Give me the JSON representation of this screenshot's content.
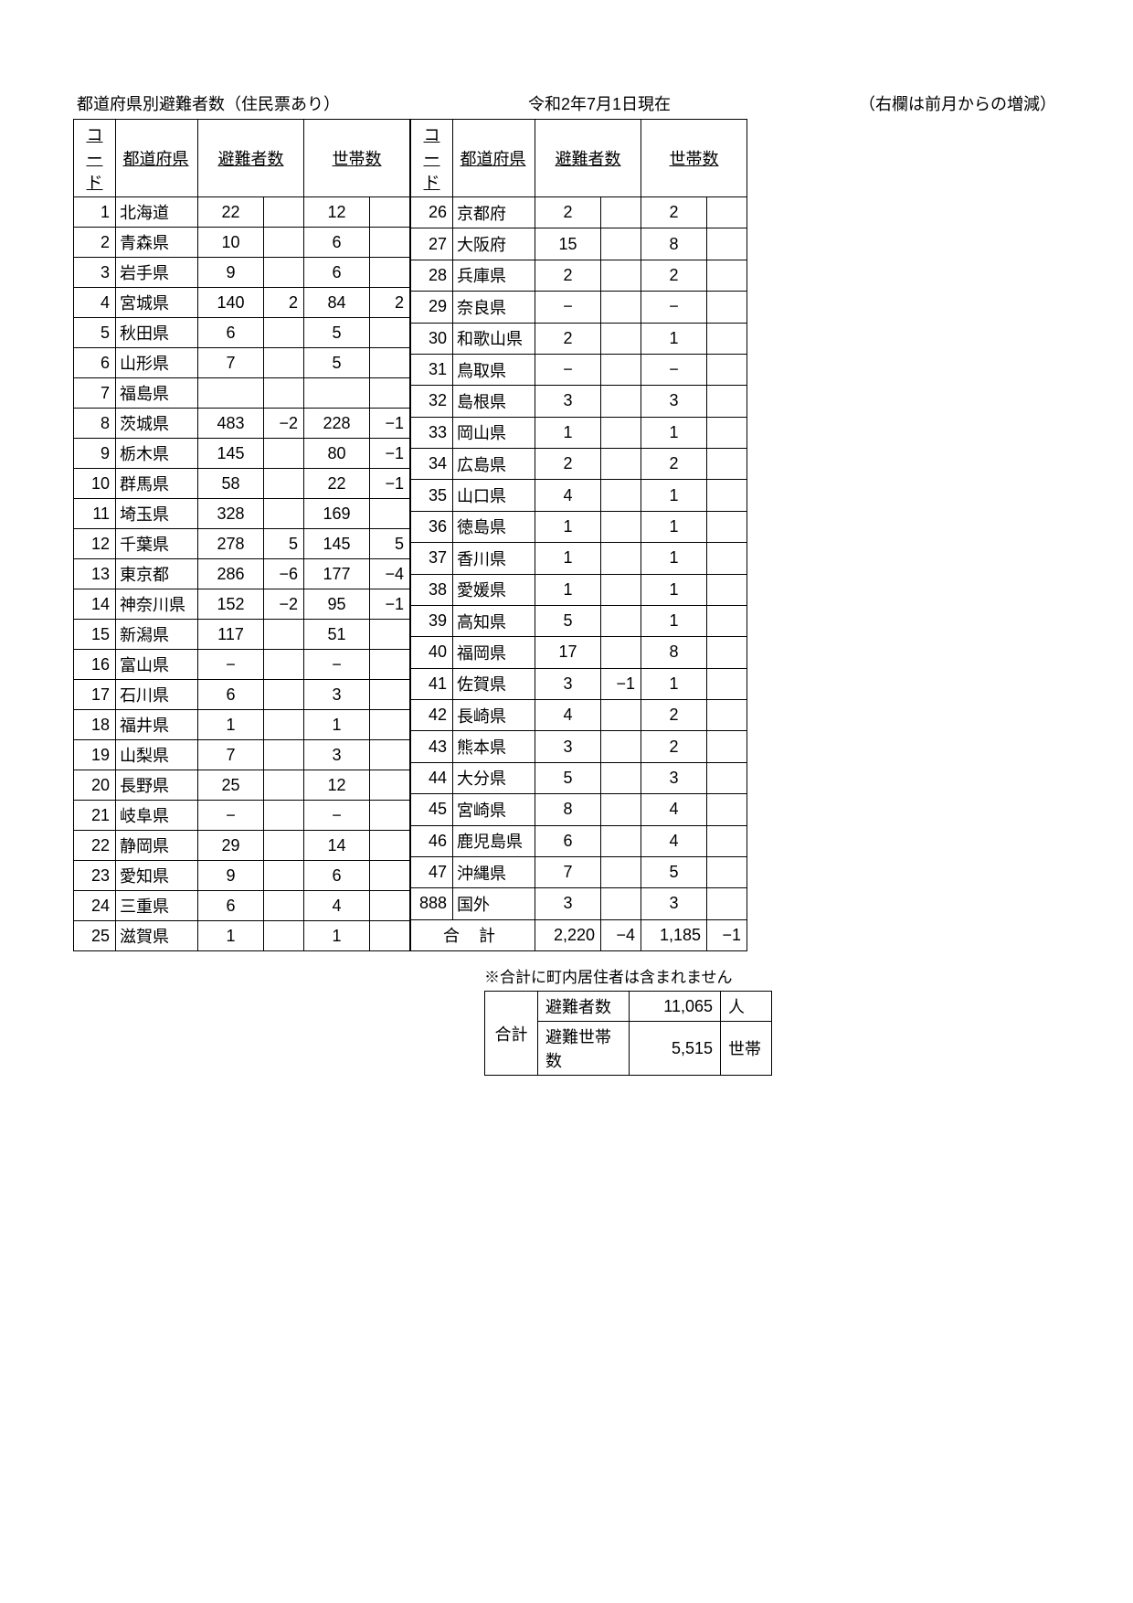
{
  "header": {
    "title": "都道府県別避難者数（住民票あり）",
    "as_of": "令和2年7月1日現在",
    "note": "（右欄は前月からの増減）"
  },
  "columns": {
    "code": "コード",
    "pref": "都道府県",
    "evacuees": "避難者数",
    "households": "世帯数"
  },
  "left_rows": [
    {
      "code": "1",
      "pref": "北海道",
      "e": "22",
      "ed": "",
      "h": "12",
      "hd": ""
    },
    {
      "code": "2",
      "pref": "青森県",
      "e": "10",
      "ed": "",
      "h": "6",
      "hd": ""
    },
    {
      "code": "3",
      "pref": "岩手県",
      "e": "9",
      "ed": "",
      "h": "6",
      "hd": ""
    },
    {
      "code": "4",
      "pref": "宮城県",
      "e": "140",
      "ed": "2",
      "h": "84",
      "hd": "2"
    },
    {
      "code": "5",
      "pref": "秋田県",
      "e": "6",
      "ed": "",
      "h": "5",
      "hd": ""
    },
    {
      "code": "6",
      "pref": "山形県",
      "e": "7",
      "ed": "",
      "h": "5",
      "hd": ""
    },
    {
      "code": "7",
      "pref": "福島県",
      "e": "",
      "ed": "",
      "h": "",
      "hd": ""
    },
    {
      "code": "8",
      "pref": "茨城県",
      "e": "483",
      "ed": "−2",
      "h": "228",
      "hd": "−1"
    },
    {
      "code": "9",
      "pref": "栃木県",
      "e": "145",
      "ed": "",
      "h": "80",
      "hd": "−1"
    },
    {
      "code": "10",
      "pref": "群馬県",
      "e": "58",
      "ed": "",
      "h": "22",
      "hd": "−1"
    },
    {
      "code": "11",
      "pref": "埼玉県",
      "e": "328",
      "ed": "",
      "h": "169",
      "hd": ""
    },
    {
      "code": "12",
      "pref": "千葉県",
      "e": "278",
      "ed": "5",
      "h": "145",
      "hd": "5"
    },
    {
      "code": "13",
      "pref": "東京都",
      "e": "286",
      "ed": "−6",
      "h": "177",
      "hd": "−4"
    },
    {
      "code": "14",
      "pref": "神奈川県",
      "e": "152",
      "ed": "−2",
      "h": "95",
      "hd": "−1"
    },
    {
      "code": "15",
      "pref": "新潟県",
      "e": "117",
      "ed": "",
      "h": "51",
      "hd": ""
    },
    {
      "code": "16",
      "pref": "富山県",
      "e": "−",
      "ed": "",
      "h": "−",
      "hd": ""
    },
    {
      "code": "17",
      "pref": "石川県",
      "e": "6",
      "ed": "",
      "h": "3",
      "hd": ""
    },
    {
      "code": "18",
      "pref": "福井県",
      "e": "1",
      "ed": "",
      "h": "1",
      "hd": ""
    },
    {
      "code": "19",
      "pref": "山梨県",
      "e": "7",
      "ed": "",
      "h": "3",
      "hd": ""
    },
    {
      "code": "20",
      "pref": "長野県",
      "e": "25",
      "ed": "",
      "h": "12",
      "hd": ""
    },
    {
      "code": "21",
      "pref": "岐阜県",
      "e": "−",
      "ed": "",
      "h": "−",
      "hd": ""
    },
    {
      "code": "22",
      "pref": "静岡県",
      "e": "29",
      "ed": "",
      "h": "14",
      "hd": ""
    },
    {
      "code": "23",
      "pref": "愛知県",
      "e": "9",
      "ed": "",
      "h": "6",
      "hd": ""
    },
    {
      "code": "24",
      "pref": "三重県",
      "e": "6",
      "ed": "",
      "h": "4",
      "hd": ""
    },
    {
      "code": "25",
      "pref": "滋賀県",
      "e": "1",
      "ed": "",
      "h": "1",
      "hd": ""
    }
  ],
  "right_rows": [
    {
      "code": "26",
      "pref": "京都府",
      "e": "2",
      "ed": "",
      "h": "2",
      "hd": ""
    },
    {
      "code": "27",
      "pref": "大阪府",
      "e": "15",
      "ed": "",
      "h": "8",
      "hd": ""
    },
    {
      "code": "28",
      "pref": "兵庫県",
      "e": "2",
      "ed": "",
      "h": "2",
      "hd": ""
    },
    {
      "code": "29",
      "pref": "奈良県",
      "e": "−",
      "ed": "",
      "h": "−",
      "hd": ""
    },
    {
      "code": "30",
      "pref": "和歌山県",
      "e": "2",
      "ed": "",
      "h": "1",
      "hd": ""
    },
    {
      "code": "31",
      "pref": "鳥取県",
      "e": "−",
      "ed": "",
      "h": "−",
      "hd": ""
    },
    {
      "code": "32",
      "pref": "島根県",
      "e": "3",
      "ed": "",
      "h": "3",
      "hd": ""
    },
    {
      "code": "33",
      "pref": "岡山県",
      "e": "1",
      "ed": "",
      "h": "1",
      "hd": ""
    },
    {
      "code": "34",
      "pref": "広島県",
      "e": "2",
      "ed": "",
      "h": "2",
      "hd": ""
    },
    {
      "code": "35",
      "pref": "山口県",
      "e": "4",
      "ed": "",
      "h": "1",
      "hd": ""
    },
    {
      "code": "36",
      "pref": "徳島県",
      "e": "1",
      "ed": "",
      "h": "1",
      "hd": ""
    },
    {
      "code": "37",
      "pref": "香川県",
      "e": "1",
      "ed": "",
      "h": "1",
      "hd": ""
    },
    {
      "code": "38",
      "pref": "愛媛県",
      "e": "1",
      "ed": "",
      "h": "1",
      "hd": ""
    },
    {
      "code": "39",
      "pref": "高知県",
      "e": "5",
      "ed": "",
      "h": "1",
      "hd": ""
    },
    {
      "code": "40",
      "pref": "福岡県",
      "e": "17",
      "ed": "",
      "h": "8",
      "hd": ""
    },
    {
      "code": "41",
      "pref": "佐賀県",
      "e": "3",
      "ed": "−1",
      "h": "1",
      "hd": ""
    },
    {
      "code": "42",
      "pref": "長崎県",
      "e": "4",
      "ed": "",
      "h": "2",
      "hd": ""
    },
    {
      "code": "43",
      "pref": "熊本県",
      "e": "3",
      "ed": "",
      "h": "2",
      "hd": ""
    },
    {
      "code": "44",
      "pref": "大分県",
      "e": "5",
      "ed": "",
      "h": "3",
      "hd": ""
    },
    {
      "code": "45",
      "pref": "宮崎県",
      "e": "8",
      "ed": "",
      "h": "4",
      "hd": ""
    },
    {
      "code": "46",
      "pref": "鹿児島県",
      "e": "6",
      "ed": "",
      "h": "4",
      "hd": ""
    },
    {
      "code": "47",
      "pref": "沖縄県",
      "e": "7",
      "ed": "",
      "h": "5",
      "hd": ""
    },
    {
      "code": "888",
      "pref": "国外",
      "e": "3",
      "ed": "",
      "h": "3",
      "hd": ""
    }
  ],
  "total": {
    "label": "合 計",
    "e": "2,220",
    "ed": "−4",
    "h": "1,185",
    "hd": "−1"
  },
  "footer": {
    "note": "※合計に町内居住者は含まれません",
    "summary_label": "合計",
    "row1_label": "避難者数",
    "row1_val": "11,065",
    "row1_unit": "人",
    "row2_label": "避難世帯数",
    "row2_val": "5,515",
    "row2_unit": "世帯"
  }
}
